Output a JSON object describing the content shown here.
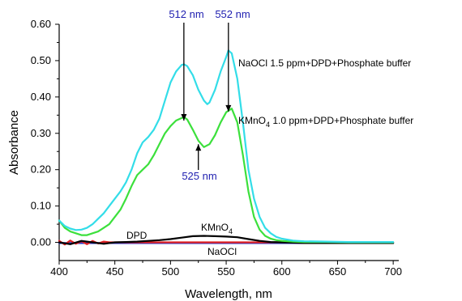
{
  "chart_data": {
    "type": "line",
    "xlabel": "Wavelength, nm",
    "ylabel": "Absorbance",
    "xlim": [
      400,
      705
    ],
    "ylim": [
      -0.05,
      0.6
    ],
    "x_ticks": [
      400,
      450,
      500,
      550,
      600,
      650,
      700
    ],
    "x_tick_labels": [
      "400",
      "450",
      "500",
      "550",
      "600",
      "650",
      "700"
    ],
    "y_ticks": [
      0.0,
      0.1,
      0.2,
      0.3,
      0.4,
      0.5,
      0.6
    ],
    "y_tick_labels": [
      "0.00",
      "0.10",
      "0.20",
      "0.30",
      "0.40",
      "0.50",
      "0.60"
    ],
    "grid": false,
    "series": [
      {
        "name": "NaOCl 1.5 ppm+DPD+Phosphate buffer",
        "color": "#33dde8",
        "x": [
          400,
          405,
          410,
          415,
          420,
          425,
          430,
          435,
          440,
          445,
          450,
          455,
          460,
          465,
          470,
          475,
          480,
          485,
          490,
          495,
          500,
          505,
          510,
          512,
          515,
          520,
          525,
          530,
          533,
          535,
          540,
          545,
          550,
          552,
          555,
          560,
          565,
          570,
          575,
          580,
          585,
          590,
          595,
          600,
          610,
          620,
          640,
          660,
          680,
          700
        ],
        "y": [
          0.06,
          0.045,
          0.038,
          0.034,
          0.035,
          0.04,
          0.05,
          0.065,
          0.08,
          0.1,
          0.12,
          0.14,
          0.165,
          0.2,
          0.245,
          0.275,
          0.29,
          0.31,
          0.34,
          0.39,
          0.44,
          0.47,
          0.488,
          0.49,
          0.485,
          0.46,
          0.42,
          0.39,
          0.38,
          0.385,
          0.42,
          0.47,
          0.51,
          0.528,
          0.52,
          0.45,
          0.33,
          0.2,
          0.12,
          0.07,
          0.04,
          0.025,
          0.015,
          0.01,
          0.005,
          0.003,
          0.002,
          0.001,
          0.001,
          0.001
        ]
      },
      {
        "name": "KMnO4 1.0 ppm+DPD+Phosphate buffer",
        "color": "#3ce03c",
        "x": [
          400,
          405,
          410,
          415,
          420,
          425,
          430,
          435,
          440,
          445,
          450,
          455,
          460,
          465,
          470,
          475,
          480,
          485,
          490,
          495,
          500,
          505,
          510,
          512,
          515,
          520,
          525,
          530,
          535,
          540,
          545,
          550,
          555,
          560,
          565,
          570,
          575,
          580,
          585,
          590,
          595,
          600,
          610,
          620,
          640,
          660,
          680,
          700
        ],
        "y": [
          0.06,
          0.04,
          0.03,
          0.025,
          0.02,
          0.02,
          0.025,
          0.03,
          0.04,
          0.05,
          0.07,
          0.09,
          0.12,
          0.155,
          0.185,
          0.2,
          0.215,
          0.24,
          0.27,
          0.3,
          0.32,
          0.335,
          0.342,
          0.345,
          0.338,
          0.31,
          0.28,
          0.262,
          0.27,
          0.295,
          0.33,
          0.358,
          0.368,
          0.33,
          0.24,
          0.14,
          0.07,
          0.035,
          0.018,
          0.01,
          0.006,
          0.004,
          0.002,
          0.001,
          0.001,
          0.0,
          0.0,
          0.0
        ]
      },
      {
        "name": "KMnO4",
        "color": "#000000",
        "x": [
          400,
          410,
          420,
          430,
          440,
          450,
          460,
          470,
          480,
          490,
          500,
          510,
          520,
          530,
          540,
          550,
          560,
          570,
          580,
          590,
          600,
          620,
          650,
          700
        ],
        "y": [
          0.0,
          -0.005,
          0.004,
          0.0,
          -0.004,
          0.0,
          0.001,
          0.002,
          0.004,
          0.006,
          0.009,
          0.013,
          0.017,
          0.018,
          0.017,
          0.016,
          0.014,
          0.009,
          0.004,
          0.001,
          0.0,
          -0.002,
          -0.002,
          -0.002
        ]
      },
      {
        "name": "DPD",
        "color": "#e02020",
        "x": [
          400,
          405,
          410,
          415,
          420,
          425,
          430,
          435,
          440,
          445,
          450,
          500,
          550,
          600,
          650,
          700
        ],
        "y": [
          0.004,
          -0.006,
          0.005,
          -0.004,
          0.003,
          -0.005,
          0.004,
          -0.003,
          0.002,
          0.0,
          0.0,
          0.0,
          0.0,
          0.0,
          0.0,
          0.0
        ]
      },
      {
        "name": "NaOCl",
        "color": "#2233cc",
        "x": [
          400,
          450,
          500,
          550,
          600,
          650,
          700
        ],
        "y": [
          -0.002,
          -0.002,
          -0.002,
          -0.002,
          -0.002,
          -0.002,
          -0.002
        ]
      }
    ],
    "annotations": [
      {
        "id": "naocl-label",
        "text": "NaOCl 1.5 ppm+DPD+Phosphate buffer"
      },
      {
        "id": "kmno4-label",
        "text": "KMnO",
        "sub": "4",
        "text_after": " 1.0 ppm+DPD+Phosphate buffer"
      },
      {
        "id": "peak-512",
        "text": "512 nm",
        "x": 512
      },
      {
        "id": "peak-552",
        "text": "552 nm",
        "x": 552
      },
      {
        "id": "peak-525",
        "text": "525 nm",
        "x": 525
      },
      {
        "id": "dpd-label",
        "text": "DPD"
      },
      {
        "id": "kmno4-small-label",
        "text": "KMnO",
        "sub": "4"
      },
      {
        "id": "naocl-small-label",
        "text": "NaOCl"
      }
    ]
  }
}
